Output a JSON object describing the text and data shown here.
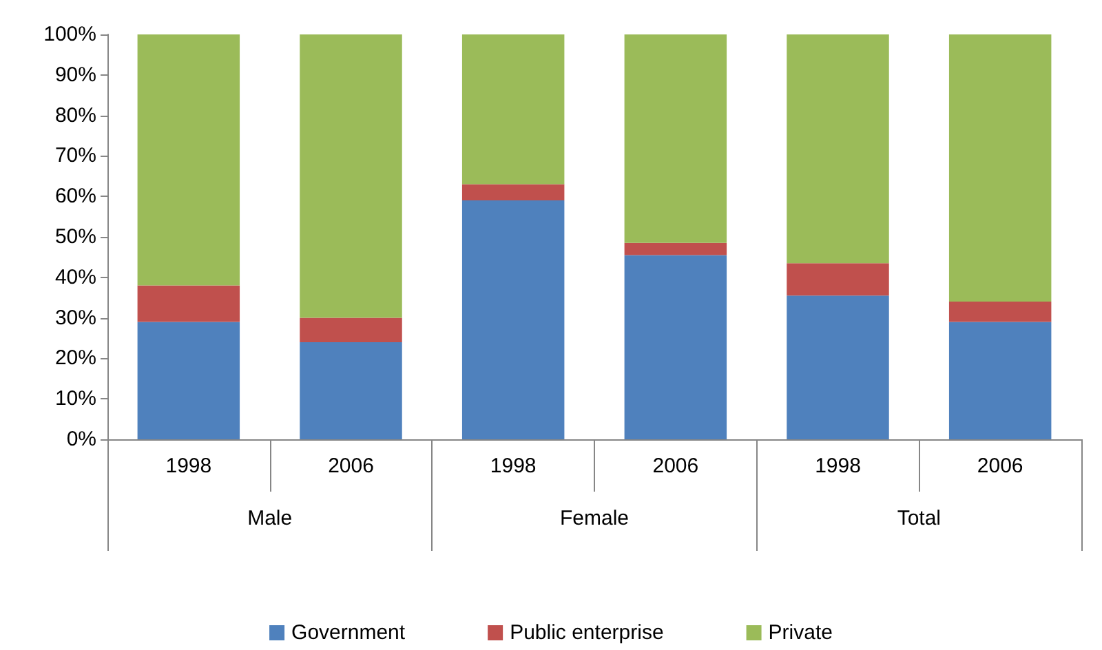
{
  "chart_data": {
    "type": "bar",
    "stacked": true,
    "categories": [
      "1998",
      "2006",
      "1998",
      "2006",
      "1998",
      "2006"
    ],
    "annotations": [
      "Male",
      "Female",
      "Total"
    ],
    "series": [
      {
        "name": "Government",
        "color": "#4f81bd",
        "values": [
          29,
          24,
          59,
          45.5,
          35.5,
          29
        ]
      },
      {
        "name": "Public enterprise",
        "color": "#c0504d",
        "values": [
          9,
          6,
          4,
          3,
          8,
          5
        ]
      },
      {
        "name": "Private",
        "color": "#9bbb59",
        "values": [
          62,
          70,
          37,
          51.5,
          56.5,
          66
        ]
      }
    ],
    "ylim": [
      0,
      100
    ],
    "yticks": [
      {
        "value": 0,
        "label": "0%"
      },
      {
        "value": 10,
        "label": "10%"
      },
      {
        "value": 20,
        "label": "20%"
      },
      {
        "value": 30,
        "label": "30%"
      },
      {
        "value": 40,
        "label": "40%"
      },
      {
        "value": 50,
        "label": "50%"
      },
      {
        "value": 60,
        "label": "60%"
      },
      {
        "value": 70,
        "label": "70%"
      },
      {
        "value": 80,
        "label": "80%"
      },
      {
        "value": 90,
        "label": "90%"
      },
      {
        "value": 100,
        "label": "100%"
      }
    ],
    "grid": false,
    "legend": "bottom"
  }
}
